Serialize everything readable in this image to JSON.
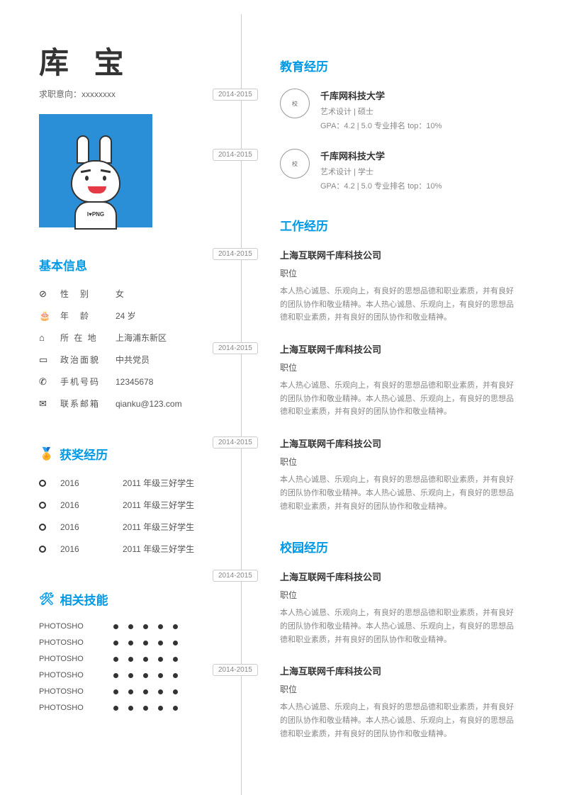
{
  "colors": {
    "accent": "#0099e5",
    "text_primary": "#333333",
    "text_secondary": "#666666",
    "text_muted": "#888888",
    "avatar_bg": "#2b8fd8",
    "timeline": "#cccccc"
  },
  "header": {
    "name": "库 宝",
    "job_intent_label": "求职意向：",
    "job_intent_value": "xxxxxxxx"
  },
  "avatar": {
    "body_text": "I♥PNG"
  },
  "sections": {
    "basic_info": "基本信息",
    "awards": "获奖经历",
    "skills": "相关技能",
    "education": "教育经历",
    "work": "工作经历",
    "campus": "校园经历"
  },
  "basic_info": [
    {
      "icon": "⊘",
      "label": "性　别",
      "value": "女"
    },
    {
      "icon": "🎂",
      "label": "年　龄",
      "value": "24 岁"
    },
    {
      "icon": "⌂",
      "label": "所 在 地",
      "value": "上海浦东新区"
    },
    {
      "icon": "▭",
      "label": "政治面貌",
      "value": "中共党员"
    },
    {
      "icon": "✆",
      "label": "手机号码",
      "value": "12345678"
    },
    {
      "icon": "✉",
      "label": "联系邮箱",
      "value": "qianku@123.com"
    }
  ],
  "awards": [
    {
      "year": "2016",
      "desc": "2011 年级三好学生"
    },
    {
      "year": "2016",
      "desc": "2011 年级三好学生"
    },
    {
      "year": "2016",
      "desc": "2011 年级三好学生"
    },
    {
      "year": "2016",
      "desc": "2011 年级三好学生"
    }
  ],
  "skills": [
    {
      "name": "PHOTOSHO",
      "level": 5,
      "max": 5
    },
    {
      "name": "PHOTOSHO",
      "level": 5,
      "max": 5
    },
    {
      "name": "PHOTOSHO",
      "level": 5,
      "max": 5
    },
    {
      "name": "PHOTOSHO",
      "level": 5,
      "max": 5
    },
    {
      "name": "PHOTOSHO",
      "level": 5,
      "max": 5
    },
    {
      "name": "PHOTOSHO",
      "level": 5,
      "max": 5
    }
  ],
  "education": [
    {
      "date": "2014-2015",
      "school": "千库网科技大学",
      "major": "艺术设计 | 硕士",
      "gpa": "GPA：4.2 | 5.0 专业排名 top：10%",
      "logo": "校"
    },
    {
      "date": "2014-2015",
      "school": "千库网科技大学",
      "major": "艺术设计 | 学士",
      "gpa": "GPA：4.2 | 5.0 专业排名 top：10%",
      "logo": "校"
    }
  ],
  "work": [
    {
      "date": "2014-2015",
      "company": "上海互联网千库科技公司",
      "position": "职位",
      "desc": "本人热心诚恳、乐观向上，有良好的思想品德和职业素质，并有良好的团队协作和敬业精神。本人热心诚恳、乐观向上，有良好的思想品德和职业素质，并有良好的团队协作和敬业精神。"
    },
    {
      "date": "2014-2015",
      "company": "上海互联网千库科技公司",
      "position": "职位",
      "desc": "本人热心诚恳、乐观向上，有良好的思想品德和职业素质，并有良好的团队协作和敬业精神。本人热心诚恳、乐观向上，有良好的思想品德和职业素质，并有良好的团队协作和敬业精神。"
    },
    {
      "date": "2014-2015",
      "company": "上海互联网千库科技公司",
      "position": "职位",
      "desc": "本人热心诚恳、乐观向上，有良好的思想品德和职业素质，并有良好的团队协作和敬业精神。本人热心诚恳、乐观向上，有良好的思想品德和职业素质，并有良好的团队协作和敬业精神。"
    }
  ],
  "campus": [
    {
      "date": "2014-2015",
      "company": "上海互联网千库科技公司",
      "position": "职位",
      "desc": "本人热心诚恳、乐观向上，有良好的思想品德和职业素质，并有良好的团队协作和敬业精神。本人热心诚恳、乐观向上，有良好的思想品德和职业素质，并有良好的团队协作和敬业精神。"
    },
    {
      "date": "2014-2015",
      "company": "上海互联网千库科技公司",
      "position": "职位",
      "desc": "本人热心诚恳、乐观向上，有良好的思想品德和职业素质，并有良好的团队协作和敬业精神。本人热心诚恳、乐观向上，有良好的思想品德和职业素质，并有良好的团队协作和敬业精神。"
    }
  ]
}
